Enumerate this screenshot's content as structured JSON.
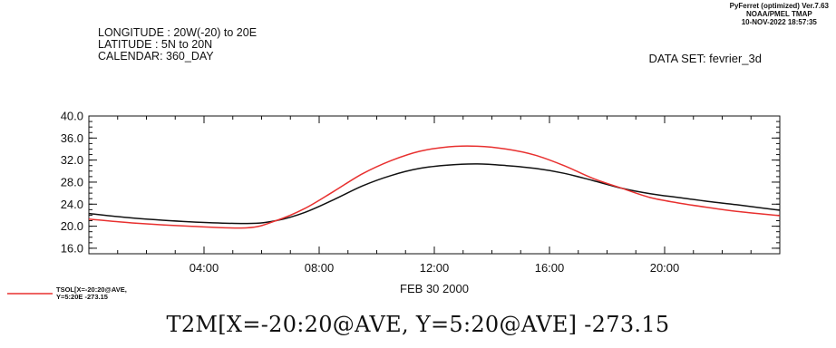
{
  "header": {
    "longitude": "LONGITUDE : 20W(-20) to 20E",
    "latitude": "LATITUDE : 5N to 20N",
    "calendar": "CALENDAR: 360_DAY",
    "dataset": "DATA SET: fevrier_3d"
  },
  "stamp": {
    "line1": "PyFerret (optimized) Ver.7.63",
    "line2": "NOAA/PMEL TMAP",
    "line3": "10-NOV-2022 18:57:35"
  },
  "legend": {
    "red_line1": "TSOL[X=-20:20@AVE,",
    "red_line2": "Y=5:20E -273.15"
  },
  "bottom_title": "T2M[X=-20:20@AVE, Y=5:20@AVE] -273.15",
  "chart_data": {
    "type": "line",
    "xlabel": "FEB 30 2000",
    "x_tick_labels": [
      "04:00",
      "08:00",
      "12:00",
      "16:00",
      "20:00"
    ],
    "x_tick_hours": [
      4,
      8,
      12,
      16,
      20
    ],
    "xlim_hours": [
      0,
      24
    ],
    "ylim": [
      15.0,
      40.0
    ],
    "y_tick_labels": [
      "16.0",
      "20.0",
      "24.0",
      "28.0",
      "32.0",
      "36.0",
      "40.0"
    ],
    "y_ticks": [
      16,
      20,
      24,
      28,
      32,
      36,
      40
    ],
    "grid": false,
    "series": [
      {
        "name": "T2M",
        "color": "#111111",
        "x": [
          0,
          1.5,
          3.5,
          5.5,
          6.5,
          7.5,
          8.5,
          9.5,
          10.5,
          11.5,
          12.5,
          13.5,
          14.5,
          15.5,
          16.5,
          17.5,
          18.5,
          19.5,
          20.5,
          21.5,
          22.5,
          24
        ],
        "y": [
          22.3,
          21.5,
          20.8,
          20.5,
          21.0,
          22.5,
          24.8,
          27.3,
          29.2,
          30.5,
          31.1,
          31.3,
          31.0,
          30.5,
          29.6,
          28.3,
          26.9,
          25.9,
          25.2,
          24.5,
          23.9,
          22.9
        ]
      },
      {
        "name": "TSOL[X=-20:20@AVE, Y=5:20E -273.15",
        "color": "#e8302f",
        "x": [
          0,
          1.5,
          3.5,
          5.5,
          6.5,
          7.5,
          8.5,
          9.5,
          10.5,
          11.5,
          12.5,
          13.5,
          14.5,
          15.5,
          16.5,
          17.5,
          18.5,
          19.5,
          20.5,
          21.5,
          22.5,
          24
        ],
        "y": [
          21.3,
          20.6,
          20.0,
          19.7,
          21.0,
          23.2,
          26.3,
          29.5,
          31.9,
          33.6,
          34.4,
          34.5,
          34.0,
          32.9,
          31.0,
          28.7,
          26.9,
          25.2,
          24.2,
          23.4,
          22.7,
          21.9
        ]
      }
    ]
  }
}
